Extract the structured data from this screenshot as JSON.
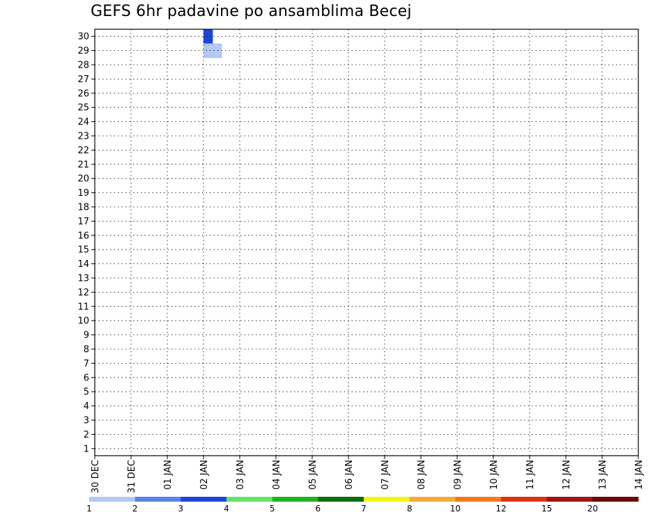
{
  "chart_data": {
    "type": "heatmap",
    "title": "GEFS 6hr padavine po ansamblima Becej",
    "xlabel": "",
    "ylabel": "",
    "x_time_steps_per_day": 4,
    "x_range_days": [
      0,
      15
    ],
    "ylim": [
      0,
      30
    ],
    "x_tick_labels": [
      "30 DEC",
      "31 DEC",
      "01 JAN",
      "02 JAN",
      "03 JAN",
      "04 JAN",
      "05 JAN",
      "06 JAN",
      "07 JAN",
      "08 JAN",
      "09 JAN",
      "10 JAN",
      "11 JAN",
      "12 JAN",
      "13 JAN",
      "14 JAN"
    ],
    "y_tick_labels": [
      "1",
      "2",
      "3",
      "4",
      "5",
      "6",
      "7",
      "8",
      "9",
      "10",
      "11",
      "12",
      "13",
      "14",
      "15",
      "16",
      "17",
      "18",
      "19",
      "20",
      "21",
      "22",
      "23",
      "24",
      "25",
      "26",
      "27",
      "28",
      "29",
      "30"
    ],
    "grid": true,
    "legend": {
      "placement": "bottom",
      "colors": [
        "#b4c8f5",
        "#5a82eb",
        "#1e46dc",
        "#64e664",
        "#1eb41e",
        "#0a6e0a",
        "#f5f514",
        "#f5aa3c",
        "#f5781e",
        "#dc3214",
        "#a01414",
        "#6e0a0a"
      ],
      "labels": [
        "1",
        "2",
        "3",
        "4",
        "5",
        "6",
        "7",
        "8",
        "10",
        "12",
        "15",
        "20"
      ]
    },
    "cells": [
      {
        "step": 12,
        "member": 30,
        "value": 2
      },
      {
        "step": 12,
        "member": 29,
        "value": 0
      },
      {
        "step": 13,
        "member": 29,
        "value": 0
      }
    ]
  }
}
